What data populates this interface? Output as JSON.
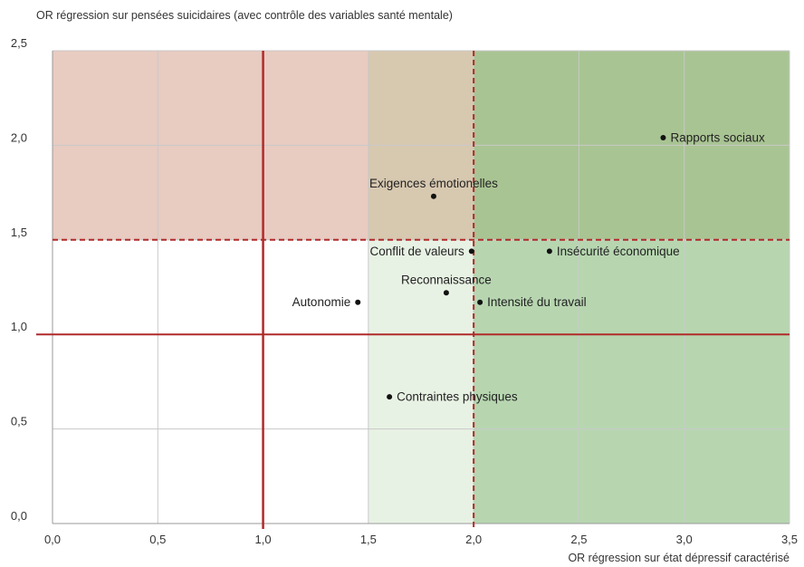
{
  "chart_data": {
    "type": "scatter",
    "ylabel": "OR régression sur pensées suicidaires (avec contrôle des variables santé mentale)",
    "xlabel": "OR régression sur état dépressif caractérisé",
    "xlim": [
      0,
      3.5
    ],
    "ylim": [
      0,
      2.5
    ],
    "x_ticks": [
      "0,0",
      "0,5",
      "1,0",
      "1,5",
      "2,0",
      "2,5",
      "3,0",
      "3,5"
    ],
    "y_ticks": [
      "0,0",
      "0,5",
      "1,0",
      "1,5",
      "2,0",
      "2,5"
    ],
    "grid": true,
    "reference_lines": {
      "solid_x": 1.0,
      "solid_y": 1.0,
      "dashed_x": 2.0,
      "dashed_y": 1.5
    },
    "zones": {
      "red": "#e8cbc1",
      "tan": "#d7c8b0",
      "dark_green": "#a9c493",
      "light_green": "#e8f2e4",
      "mid_green": "#b7d6b0"
    },
    "line_color": "#b02a2a",
    "points": [
      {
        "label": "Rapports sociaux",
        "x": 2.9,
        "y": 2.04,
        "side": "right"
      },
      {
        "label": "Exigences émotionelles",
        "x": 1.81,
        "y": 1.73,
        "side": "above"
      },
      {
        "label": "Conflit de valeurs",
        "x": 1.99,
        "y": 1.44,
        "side": "left"
      },
      {
        "label": "Insécurité économique",
        "x": 2.36,
        "y": 1.44,
        "side": "right"
      },
      {
        "label": "Reconnaissance",
        "x": 1.87,
        "y": 1.22,
        "side": "above"
      },
      {
        "label": "Intensité du travail",
        "x": 2.03,
        "y": 1.17,
        "side": "right"
      },
      {
        "label": "Autonomie",
        "x": 1.45,
        "y": 1.17,
        "side": "left"
      },
      {
        "label": "Contraintes physiques",
        "x": 1.6,
        "y": 0.67,
        "side": "right"
      }
    ]
  }
}
